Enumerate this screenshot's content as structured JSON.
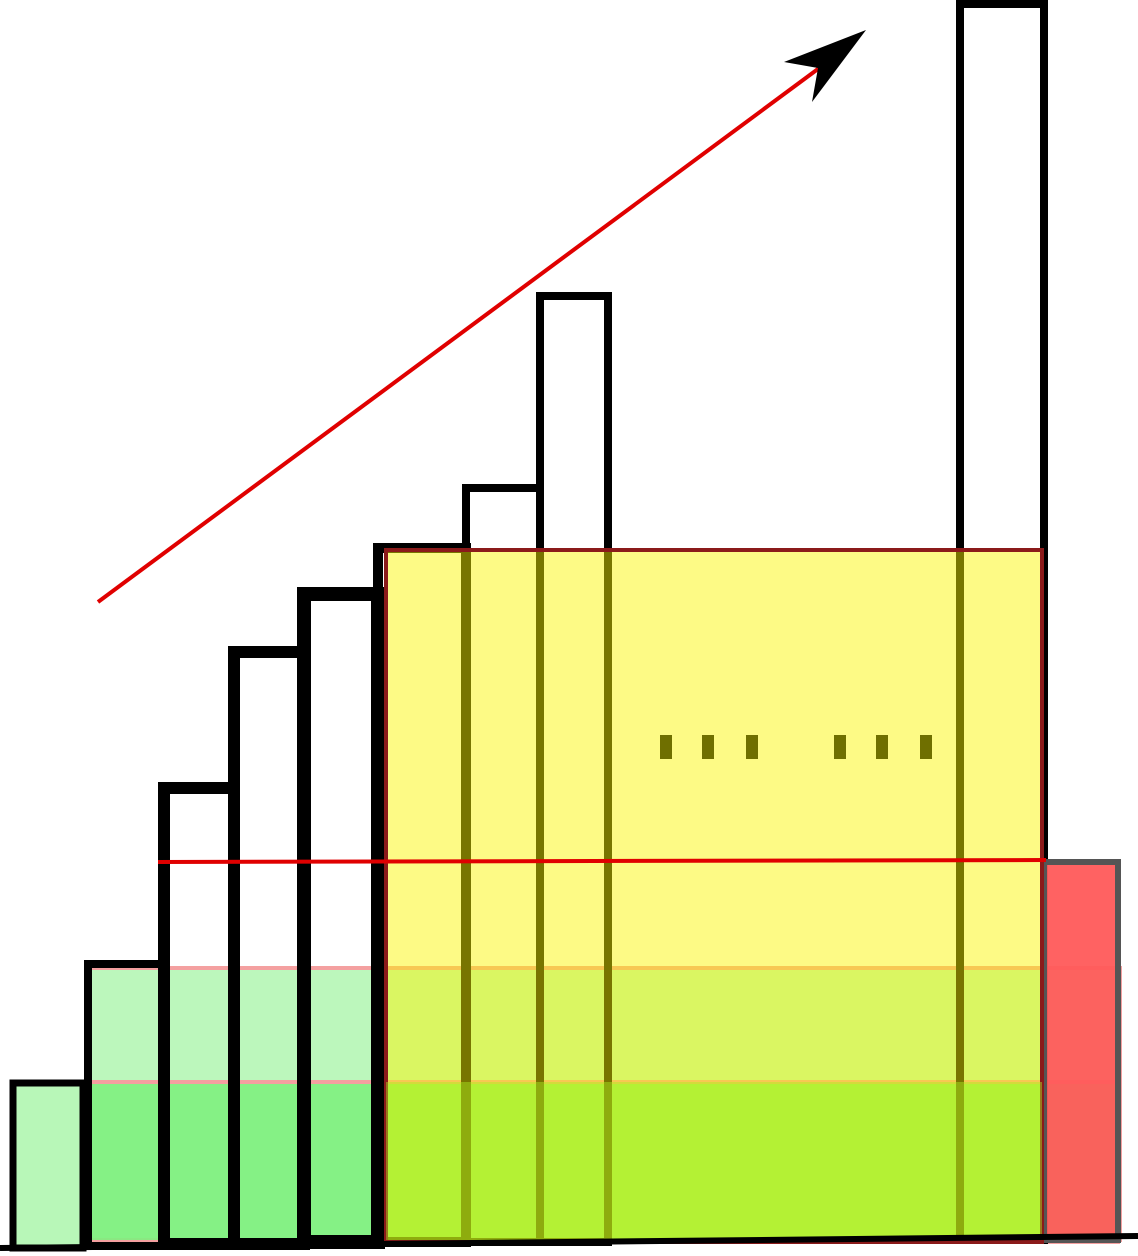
{
  "diagram": {
    "type": "histogram-rectangle-illustration",
    "bars": [
      {
        "index": 1,
        "relative_height": 0.13
      },
      {
        "index": 2,
        "relative_height": 0.23
      },
      {
        "index": 3,
        "relative_height": 0.37
      },
      {
        "index": 4,
        "relative_height": 0.48
      },
      {
        "index": 5,
        "relative_height": 0.52
      },
      {
        "index": 6,
        "relative_height": 0.56
      },
      {
        "index": 7,
        "relative_height": 0.61
      },
      {
        "index": 8,
        "relative_height": 0.76
      },
      {
        "index": 9,
        "relative_height": 1.0
      }
    ],
    "ellipsis": [
      "...",
      "..."
    ],
    "colors": {
      "outline": "#000000",
      "trend_arrow": "#e00000",
      "threshold_line": "#e00000",
      "rect_light_green": "#b8f7b8",
      "rect_green": "#80f080",
      "rect_yellow": "#fbf47a",
      "rect_red": "#ff5a5a"
    },
    "icons": {
      "arrowhead": "arrowhead-icon"
    }
  }
}
